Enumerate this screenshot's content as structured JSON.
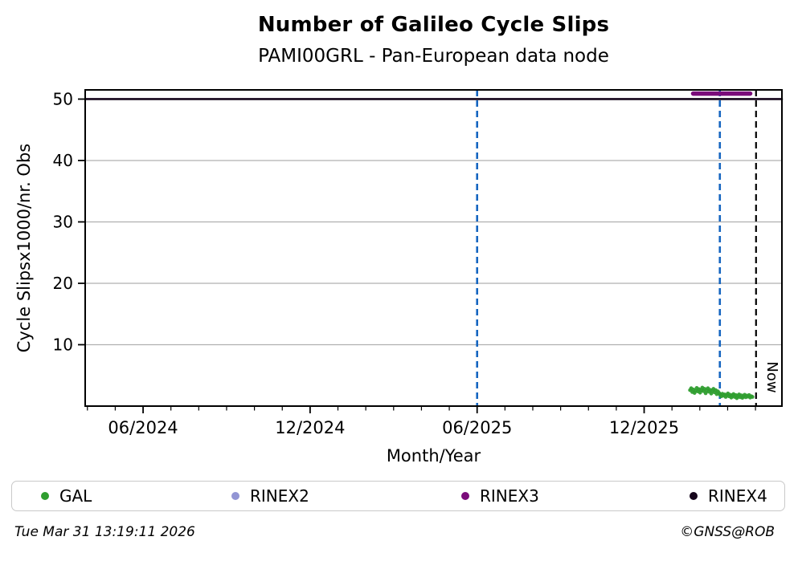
{
  "chart_data": {
    "type": "scatter",
    "title": "Number of Galileo Cycle Slips",
    "subtitle": "PAMI00GRL - Pan-European data node",
    "xlabel": "Month/Year",
    "ylabel": "Cycle Slipsx1000/nr. Obs",
    "x_unit": "months_after_2024-06-01",
    "xlim": [
      -2.08,
      22.95
    ],
    "ylim": [
      0,
      51.5
    ],
    "yticks": [
      10,
      20,
      30,
      40,
      50
    ],
    "xticks": [
      {
        "pos": 0,
        "label": "06/2024"
      },
      {
        "pos": 6,
        "label": "12/2024"
      },
      {
        "pos": 12,
        "label": "06/2025"
      },
      {
        "pos": 18,
        "label": "12/2025"
      }
    ],
    "minor_xtick_step": 1,
    "grid": "horizontal-gray",
    "grid_color": "#b0b0b0",
    "vlines": [
      {
        "pos": 12.0,
        "color": "#1565c0",
        "style": "dashed",
        "label": ""
      },
      {
        "pos": 20.72,
        "color": "#1565c0",
        "style": "dashed",
        "label": ""
      },
      {
        "pos": 22.02,
        "color": "#000000",
        "style": "dashed",
        "label": "Now"
      }
    ],
    "series": [
      {
        "name": "GAL",
        "color": "#2f9e2f",
        "marker": "dot",
        "points": [
          [
            19.65,
            2.6
          ],
          [
            19.69,
            2.9
          ],
          [
            19.73,
            2.3
          ],
          [
            19.77,
            2.7
          ],
          [
            19.81,
            2.15
          ],
          [
            19.85,
            2.5
          ],
          [
            19.89,
            2.95
          ],
          [
            19.93,
            2.4
          ],
          [
            19.97,
            2.75
          ],
          [
            20.01,
            2.2
          ],
          [
            20.05,
            2.6
          ],
          [
            20.09,
            3.0
          ],
          [
            20.13,
            2.45
          ],
          [
            20.17,
            2.8
          ],
          [
            20.21,
            2.1
          ],
          [
            20.25,
            2.55
          ],
          [
            20.29,
            2.9
          ],
          [
            20.33,
            2.35
          ],
          [
            20.37,
            2.65
          ],
          [
            20.41,
            2.05
          ],
          [
            20.45,
            2.5
          ],
          [
            20.49,
            2.8
          ],
          [
            20.53,
            2.25
          ],
          [
            20.57,
            2.6
          ],
          [
            20.61,
            1.95
          ],
          [
            20.65,
            2.4
          ],
          [
            20.69,
            2.15
          ],
          [
            20.73,
            1.85
          ],
          [
            20.77,
            1.6
          ],
          [
            20.81,
            2.0
          ],
          [
            20.85,
            1.7
          ],
          [
            20.89,
            1.9
          ],
          [
            20.93,
            1.5
          ],
          [
            20.97,
            1.8
          ],
          [
            21.01,
            2.05
          ],
          [
            21.05,
            1.6
          ],
          [
            21.09,
            1.85
          ],
          [
            21.13,
            1.4
          ],
          [
            21.17,
            1.7
          ],
          [
            21.21,
            1.95
          ],
          [
            21.25,
            1.5
          ],
          [
            21.29,
            1.8
          ],
          [
            21.33,
            1.3
          ],
          [
            21.37,
            1.65
          ],
          [
            21.41,
            1.9
          ],
          [
            21.45,
            1.45
          ],
          [
            21.49,
            1.75
          ],
          [
            21.53,
            1.35
          ],
          [
            21.57,
            1.6
          ],
          [
            21.61,
            1.85
          ],
          [
            21.65,
            1.45
          ],
          [
            21.69,
            1.7
          ],
          [
            21.73,
            1.55
          ],
          [
            21.77,
            1.8
          ],
          [
            21.81,
            1.4
          ],
          [
            21.85,
            1.6
          ],
          [
            21.89,
            1.5
          ]
        ]
      },
      {
        "name": "RINEX2",
        "color": "#9295d4",
        "marker": "dot",
        "points": []
      },
      {
        "name": "RINEX3",
        "color": "#7b0c7b",
        "marker": "thick-line",
        "line": {
          "x0": 19.76,
          "x1": 21.81,
          "y": 50.9
        }
      },
      {
        "name": "RINEX4",
        "color": "#16061c",
        "marker": "line",
        "line": {
          "x0": -2.08,
          "x1": 22.95,
          "y": 50.0
        }
      }
    ]
  },
  "legend": {
    "items": [
      {
        "label": "GAL",
        "color": "#2f9e2f"
      },
      {
        "label": "RINEX2",
        "color": "#9295d4"
      },
      {
        "label": "RINEX3",
        "color": "#7b0c7b"
      },
      {
        "label": "RINEX4",
        "color": "#16061c"
      }
    ]
  },
  "footer": {
    "timestamp": "Tue Mar 31 13:19:11 2026",
    "credit": "©GNSS@ROB"
  }
}
